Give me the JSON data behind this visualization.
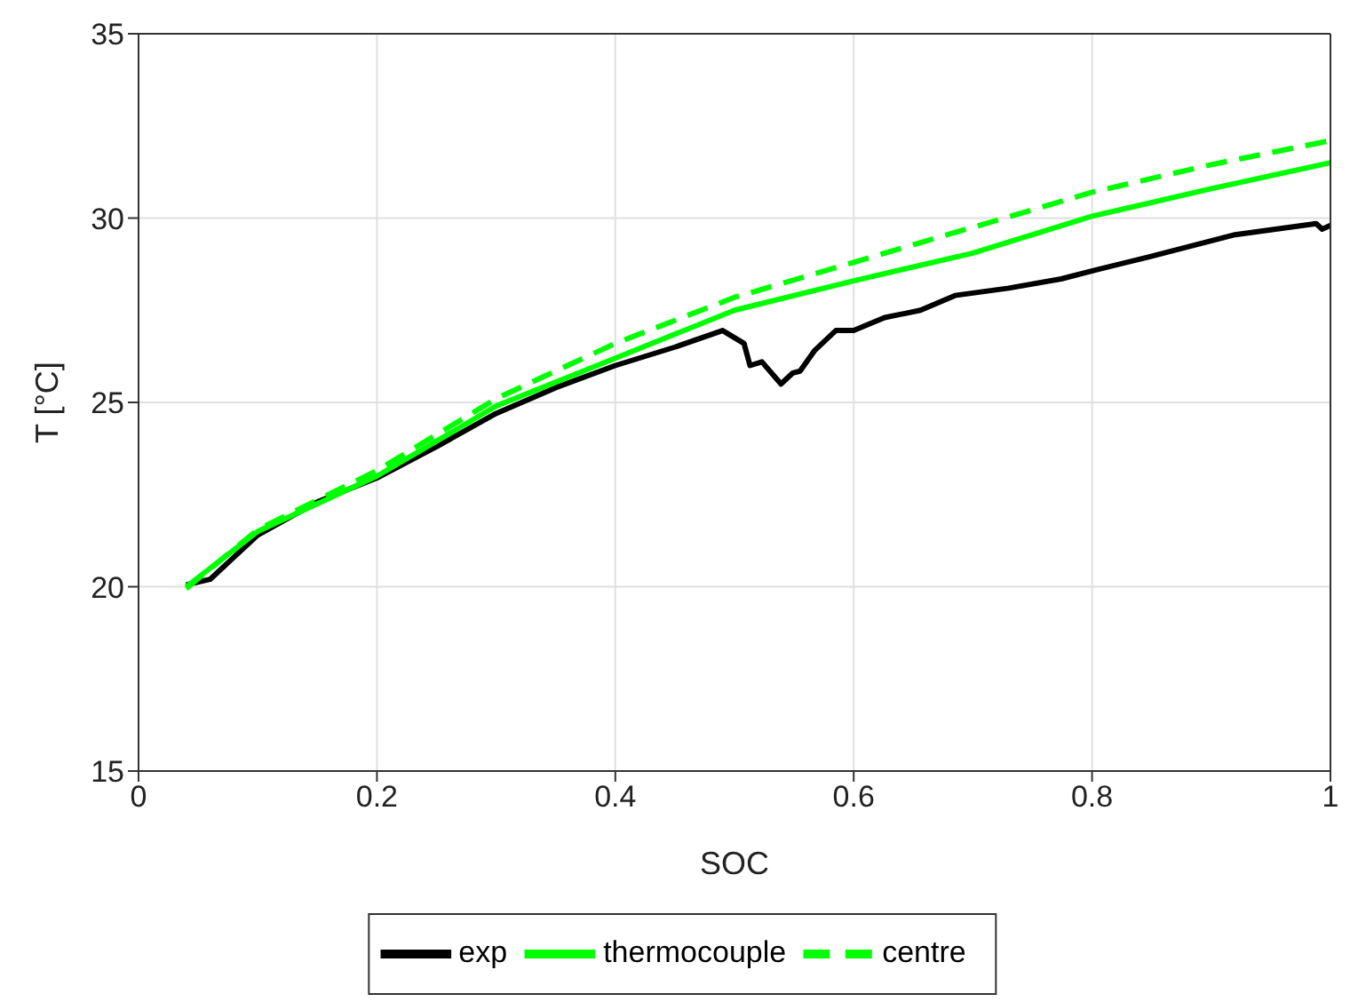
{
  "chart_data": {
    "type": "line",
    "xlabel": "SOC",
    "ylabel": "T [°C]",
    "xlim": [
      0,
      1
    ],
    "xticks": [
      0,
      0.2,
      0.4,
      0.6,
      0.8,
      1
    ],
    "ylim": [
      15,
      35
    ],
    "yticks": [
      15,
      20,
      25,
      30,
      35
    ],
    "grid": true,
    "legend": "bottom",
    "series": [
      {
        "name": "exp",
        "color": "#000000",
        "line_style": "solid",
        "x": [
          0.04,
          0.06,
          0.1,
          0.15,
          0.2,
          0.25,
          0.3,
          0.35,
          0.4,
          0.45,
          0.49,
          0.508,
          0.513,
          0.523,
          0.539,
          0.549,
          0.555,
          0.567,
          0.585,
          0.6,
          0.626,
          0.656,
          0.685,
          0.73,
          0.774,
          0.804,
          0.848,
          0.92,
          0.988,
          0.993,
          1
        ],
        "values": [
          20.05,
          20.2,
          21.4,
          22.3,
          22.95,
          23.8,
          24.7,
          25.4,
          26.0,
          26.5,
          26.95,
          26.6,
          26.0,
          26.1,
          25.5,
          25.8,
          25.85,
          26.4,
          26.95,
          26.95,
          27.3,
          27.5,
          27.9,
          28.1,
          28.35,
          28.6,
          28.95,
          29.55,
          29.85,
          29.7,
          29.8
        ]
      },
      {
        "name": "thermocouple",
        "color": "#00ff00",
        "line_style": "solid",
        "x": [
          0.04,
          0.1,
          0.2,
          0.3,
          0.4,
          0.5,
          0.6,
          0.7,
          0.8,
          0.9,
          1
        ],
        "values": [
          20.0,
          21.5,
          23.0,
          24.9,
          26.2,
          27.5,
          28.3,
          29.05,
          30.05,
          30.8,
          31.5
        ]
      },
      {
        "name": "centre",
        "color": "#00ff00",
        "line_style": "dashed",
        "x": [
          0.04,
          0.1,
          0.2,
          0.3,
          0.4,
          0.5,
          0.6,
          0.7,
          0.8,
          0.9,
          1
        ],
        "values": [
          19.95,
          21.55,
          23.15,
          25.1,
          26.6,
          27.85,
          28.8,
          29.75,
          30.7,
          31.45,
          32.1
        ]
      }
    ]
  }
}
